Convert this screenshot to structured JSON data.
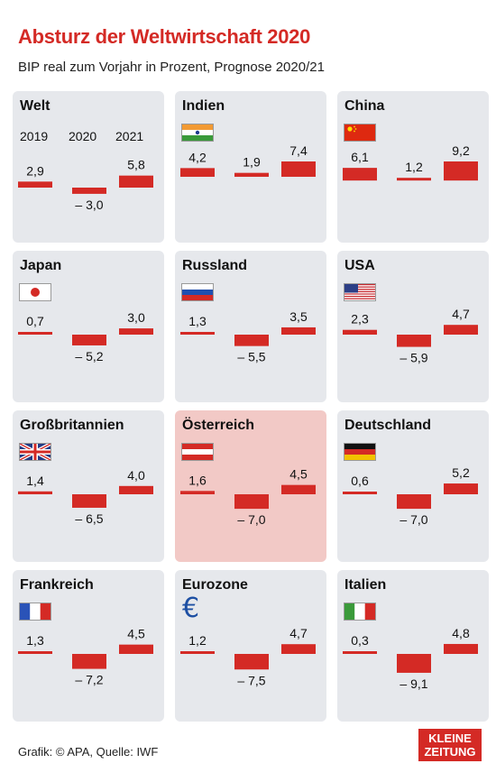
{
  "title": "Absturz der Weltwirtschaft 2020",
  "subtitle": "BIP real zum Vorjahr in Prozent, Prognose 2020/21",
  "years": [
    "2019",
    "2020",
    "2021"
  ],
  "footer": "Grafik: © APA, Quelle: IWF",
  "logo": {
    "line1": "KLEINE",
    "line2": "ZEITUNG"
  },
  "colors": {
    "bar": "#d42a25",
    "panel": "#e6e8ec",
    "highlight": "#f2c9c6",
    "title": "#d42a25"
  },
  "chart_data": [
    {
      "type": "bar",
      "title": "Welt",
      "categories": [
        "2019",
        "2020",
        "2021"
      ],
      "values": [
        2.9,
        -3.0,
        5.8
      ],
      "labels": [
        "2,9",
        "– 3,0",
        "5,8"
      ],
      "icon": "none"
    },
    {
      "type": "bar",
      "title": "Indien",
      "categories": [
        "2019",
        "2020",
        "2021"
      ],
      "values": [
        4.2,
        1.9,
        7.4
      ],
      "labels": [
        "4,2",
        "1,9",
        "7,4"
      ],
      "icon": "india-flag"
    },
    {
      "type": "bar",
      "title": "China",
      "categories": [
        "2019",
        "2020",
        "2021"
      ],
      "values": [
        6.1,
        1.2,
        9.2
      ],
      "labels": [
        "6,1",
        "1,2",
        "9,2"
      ],
      "icon": "china-flag"
    },
    {
      "type": "bar",
      "title": "Japan",
      "categories": [
        "2019",
        "2020",
        "2021"
      ],
      "values": [
        0.7,
        -5.2,
        3.0
      ],
      "labels": [
        "0,7",
        "– 5,2",
        "3,0"
      ],
      "icon": "japan-flag"
    },
    {
      "type": "bar",
      "title": "Russland",
      "categories": [
        "2019",
        "2020",
        "2021"
      ],
      "values": [
        1.3,
        -5.5,
        3.5
      ],
      "labels": [
        "1,3",
        "– 5,5",
        "3,5"
      ],
      "icon": "russia-flag"
    },
    {
      "type": "bar",
      "title": "USA",
      "categories": [
        "2019",
        "2020",
        "2021"
      ],
      "values": [
        2.3,
        -5.9,
        4.7
      ],
      "labels": [
        "2,3",
        "– 5,9",
        "4,7"
      ],
      "icon": "usa-flag"
    },
    {
      "type": "bar",
      "title": "Großbritannien",
      "categories": [
        "2019",
        "2020",
        "2021"
      ],
      "values": [
        1.4,
        -6.5,
        4.0
      ],
      "labels": [
        "1,4",
        "– 6,5",
        "4,0"
      ],
      "icon": "uk-flag"
    },
    {
      "type": "bar",
      "title": "Österreich",
      "categories": [
        "2019",
        "2020",
        "2021"
      ],
      "values": [
        1.6,
        -7.0,
        4.5
      ],
      "labels": [
        "1,6",
        "– 7,0",
        "4,5"
      ],
      "icon": "austria-flag",
      "highlight": true
    },
    {
      "type": "bar",
      "title": "Deutschland",
      "categories": [
        "2019",
        "2020",
        "2021"
      ],
      "values": [
        0.6,
        -7.0,
        5.2
      ],
      "labels": [
        "0,6",
        "– 7,0",
        "5,2"
      ],
      "icon": "germany-flag"
    },
    {
      "type": "bar",
      "title": "Frankreich",
      "categories": [
        "2019",
        "2020",
        "2021"
      ],
      "values": [
        1.3,
        -7.2,
        4.5
      ],
      "labels": [
        "1,3",
        "– 7,2",
        "4,5"
      ],
      "icon": "france-flag"
    },
    {
      "type": "bar",
      "title": "Eurozone",
      "categories": [
        "2019",
        "2020",
        "2021"
      ],
      "values": [
        1.2,
        -7.5,
        4.7
      ],
      "labels": [
        "1,2",
        "– 7,5",
        "4,7"
      ],
      "icon": "euro-icon",
      "icon_text": "€"
    },
    {
      "type": "bar",
      "title": "Italien",
      "categories": [
        "2019",
        "2020",
        "2021"
      ],
      "values": [
        0.3,
        -9.1,
        4.8
      ],
      "labels": [
        "0,3",
        "– 9,1",
        "4,8"
      ],
      "icon": "italy-flag"
    }
  ]
}
